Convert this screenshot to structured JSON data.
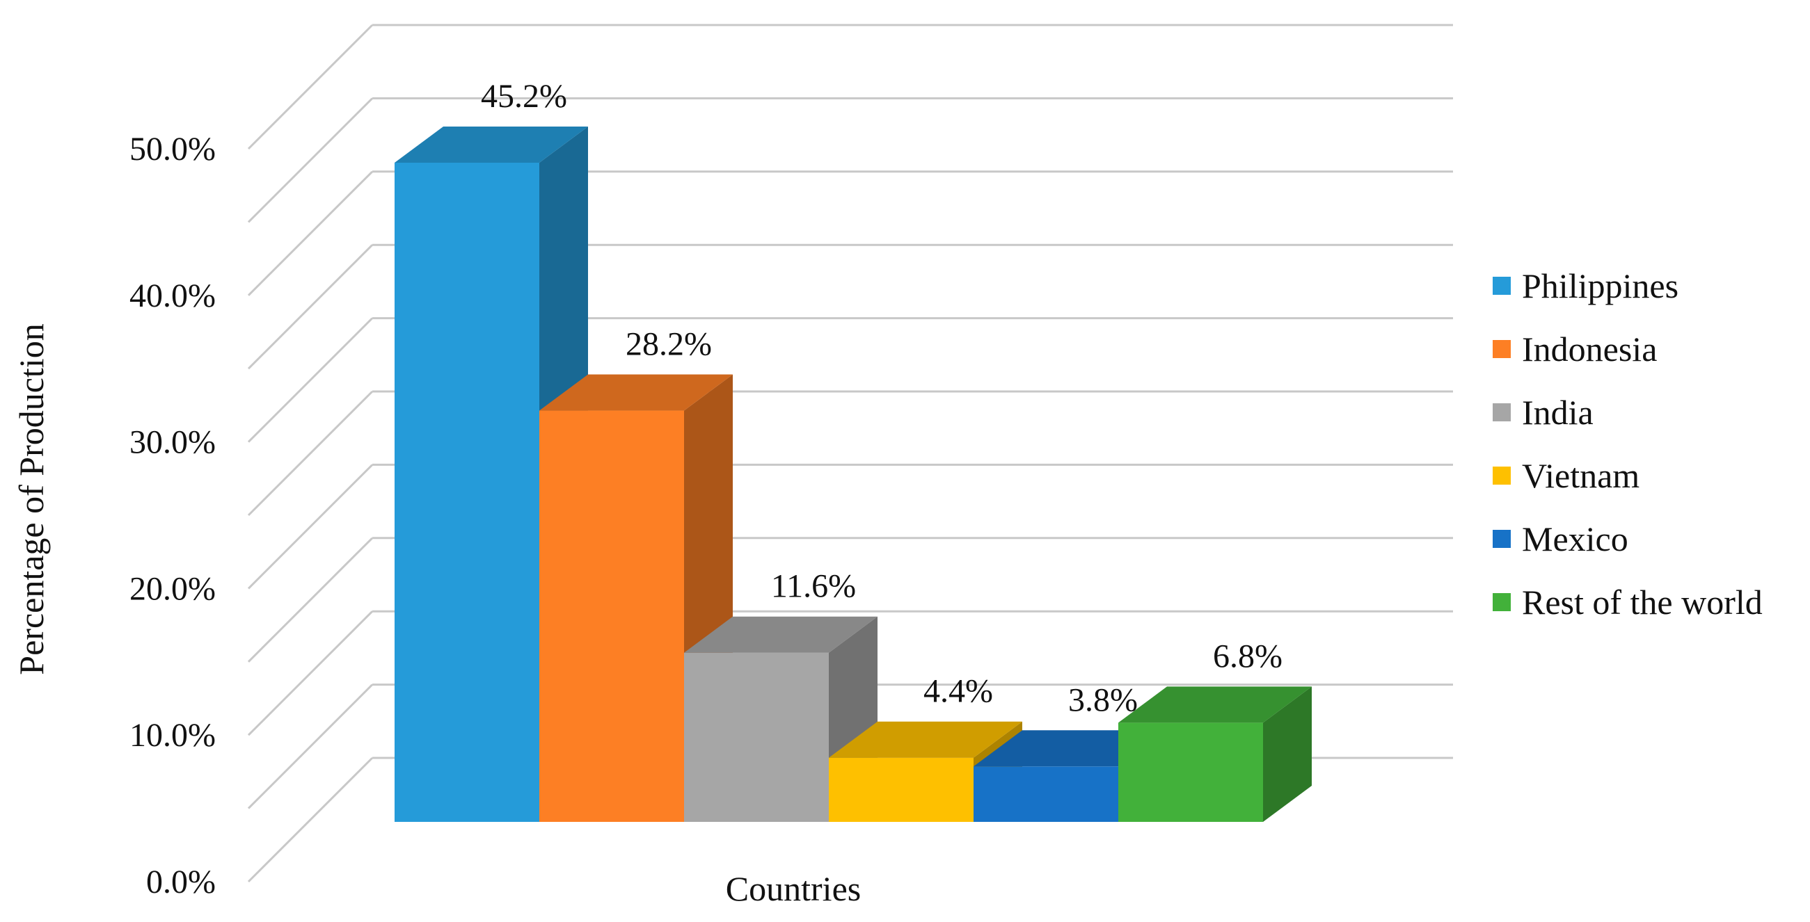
{
  "chart_data": {
    "type": "bar",
    "style": "3d-clustered-column",
    "title": "",
    "xlabel": "Countries",
    "ylabel": "Percentage  of Production",
    "ylim": [
      0,
      50
    ],
    "y_ticks": [
      "0.0%",
      "10.0%",
      "20.0%",
      "30.0%",
      "40.0%",
      "50.0%"
    ],
    "grid": true,
    "legend_position": "right",
    "series": [
      {
        "name": "Philippines",
        "value": 45.2,
        "label": "45.2%",
        "color": "#259BD9"
      },
      {
        "name": "Indonesia",
        "value": 28.2,
        "label": "28.2%",
        "color": "#FD7F24"
      },
      {
        "name": "India",
        "value": 11.6,
        "label": "11.6%",
        "color": "#A6A6A6"
      },
      {
        "name": "Vietnam",
        "value": 4.4,
        "label": "4.4%",
        "color": "#FEC000"
      },
      {
        "name": "Mexico",
        "value": 3.8,
        "label": "3.8%",
        "color": "#1772C7"
      },
      {
        "name": "Rest of the world",
        "value": 6.8,
        "label": "6.8%",
        "color": "#42B13A"
      }
    ]
  }
}
